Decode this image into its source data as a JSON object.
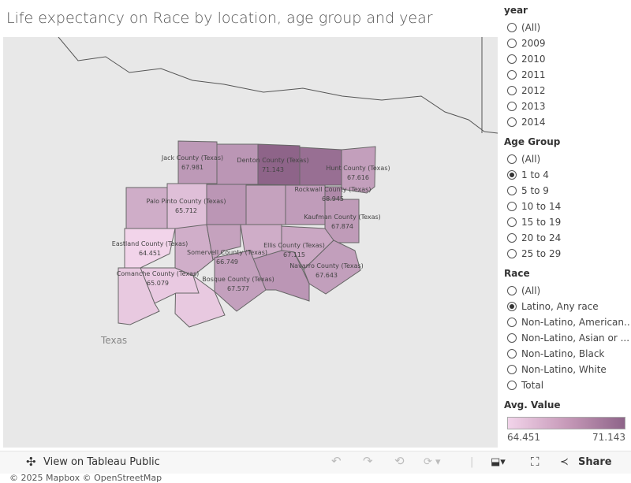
{
  "title": "Life expectancy on Race by location, age group and year",
  "map": {
    "attribution": "© 2025 Mapbox  © OpenStreetMap",
    "state_label": "Texas",
    "color_low": "#f2d4ea",
    "color_high": "#8e6489",
    "counties": [
      {
        "name": "Jack County (Texas)",
        "value": "67.981"
      },
      {
        "name": "Denton County (Texas)",
        "value": "71.143"
      },
      {
        "name": "Hunt County (Texas)",
        "value": "67.616"
      },
      {
        "name": "Palo Pinto County (Texas)",
        "value": "65.712"
      },
      {
        "name": "Rockwall County (Texas)",
        "value": "68.945"
      },
      {
        "name": "Kaufman County (Texas)",
        "value": "67.874"
      },
      {
        "name": "Eastland County (Texas)",
        "value": "64.451"
      },
      {
        "name": "Somervell County (Texas)",
        "value": "66.749"
      },
      {
        "name": "Ellis County (Texas)",
        "value": "67.115"
      },
      {
        "name": "Navarro County (Texas)",
        "value": "67.643"
      },
      {
        "name": "Comanche County (Texas)",
        "value": "65.079"
      },
      {
        "name": "Bosque County (Texas)",
        "value": "67.577"
      }
    ]
  },
  "filters": {
    "year": {
      "title": "year",
      "options": [
        "(All)",
        "2009",
        "2010",
        "2011",
        "2012",
        "2013",
        "2014"
      ],
      "selected": null
    },
    "age": {
      "title": "Age Group",
      "options": [
        "(All)",
        "1 to 4",
        "5 to 9",
        "10 to 14",
        "15 to 19",
        "20 to 24",
        "25 to 29"
      ],
      "selected": 1
    },
    "race": {
      "title": "Race",
      "options": [
        "(All)",
        "Latino, Any race",
        "Non-Latino, American...",
        "Non-Latino, Asian or ...",
        "Non-Latino, Black",
        "Non-Latino, White",
        "Total"
      ],
      "selected": 1
    }
  },
  "legend": {
    "title": "Avg. Value",
    "min": "64.451",
    "max": "71.143"
  },
  "toolbar": {
    "view_label": "View on Tableau Public",
    "share_label": "Share"
  }
}
